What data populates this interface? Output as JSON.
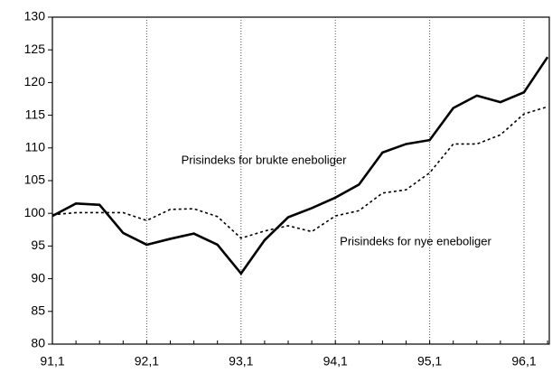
{
  "chart_data": {
    "type": "line",
    "categories": [
      "91,1",
      null,
      null,
      null,
      "92,1",
      null,
      null,
      null,
      "93,1",
      null,
      null,
      null,
      "94,1",
      null,
      null,
      null,
      "95,1",
      null,
      null,
      null,
      "96,1",
      null
    ],
    "series": [
      {
        "name": "Prisindeks for brukte eneboliger",
        "color": "#000000",
        "dash": false,
        "values": [
          99.6,
          101.5,
          101.3,
          97,
          95.2,
          96.1,
          96.9,
          95.2,
          90.8,
          95.9,
          99.4,
          100.8,
          102.4,
          104.4,
          109.3,
          110.6,
          111.2,
          116.1,
          118,
          117,
          118.5,
          123.9
        ]
      },
      {
        "name": "Prisindeks for nye eneboliger",
        "color": "#000000",
        "dash": true,
        "values": [
          99.8,
          100.1,
          100.1,
          100.1,
          98.9,
          100.6,
          100.7,
          99.5,
          96.2,
          97.3,
          98.1,
          97.2,
          99.6,
          100.4,
          103.1,
          103.6,
          106.2,
          110.6,
          110.6,
          112,
          115.2,
          116.3
        ]
      }
    ],
    "ylim": [
      80,
      130
    ],
    "yticks": [
      80,
      85,
      90,
      95,
      100,
      105,
      110,
      115,
      120,
      125,
      130
    ],
    "xgrid": true
  }
}
